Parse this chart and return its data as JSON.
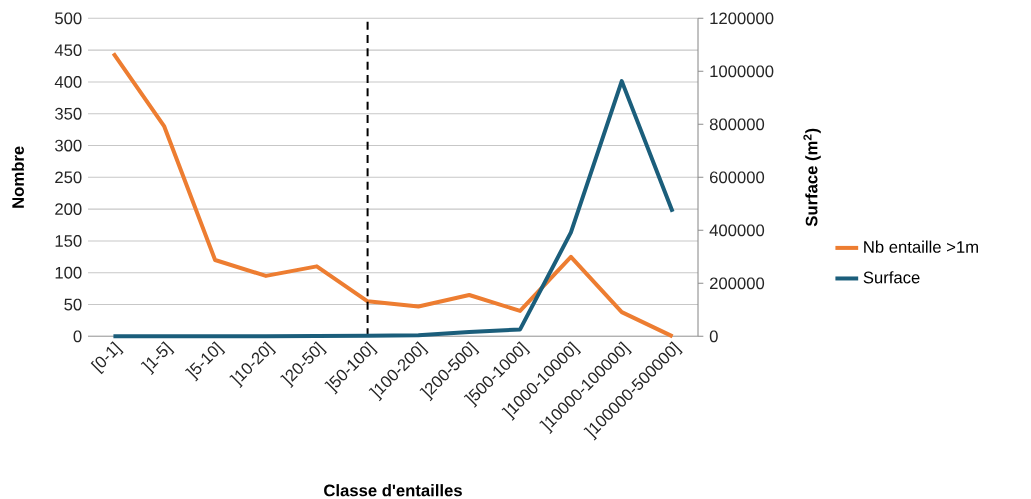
{
  "chart_data": {
    "type": "line",
    "xlabel": "Classe d'entailles",
    "ylabel": "Nombre",
    "y2label": "Surface (m$^{2}$)",
    "categories": [
      "[0-1]",
      "]1-5]",
      "]5-10]",
      "]10-20]",
      "]20-50]",
      "]50-100]",
      "]100-200]",
      "]200-500]",
      "]500-1000]",
      "]1000-10000]",
      "]10000-100000]",
      "]100000-500000]"
    ],
    "series": [
      {
        "name": "Nb entaille >1m",
        "color": "#ed7d31",
        "values": [
          445,
          330,
          120,
          95,
          110,
          55,
          47,
          65,
          40,
          125,
          38,
          0
        ]
      },
      {
        "name": "Surface",
        "color": "#1b5e7b",
        "axis": "y2",
        "values": [
          0,
          0,
          0,
          0,
          1000,
          2000,
          4000,
          16000,
          26000,
          392000,
          963000,
          470000
        ]
      }
    ],
    "ylim": [
      0,
      500
    ],
    "yticks": [
      0,
      50,
      100,
      150,
      200,
      250,
      300,
      350,
      400,
      450,
      500
    ],
    "y2lim": [
      0,
      1200000
    ],
    "y2ticks": [
      0,
      200000,
      400000,
      600000,
      800000,
      1000000,
      1200000
    ],
    "ref_lines": [
      {
        "axis": "x",
        "value": "]50-100]",
        "color": "#000000",
        "line_style": "dashed"
      }
    ],
    "grid": "y",
    "legend": "right",
    "marker": "none",
    "line_style": "solid"
  }
}
